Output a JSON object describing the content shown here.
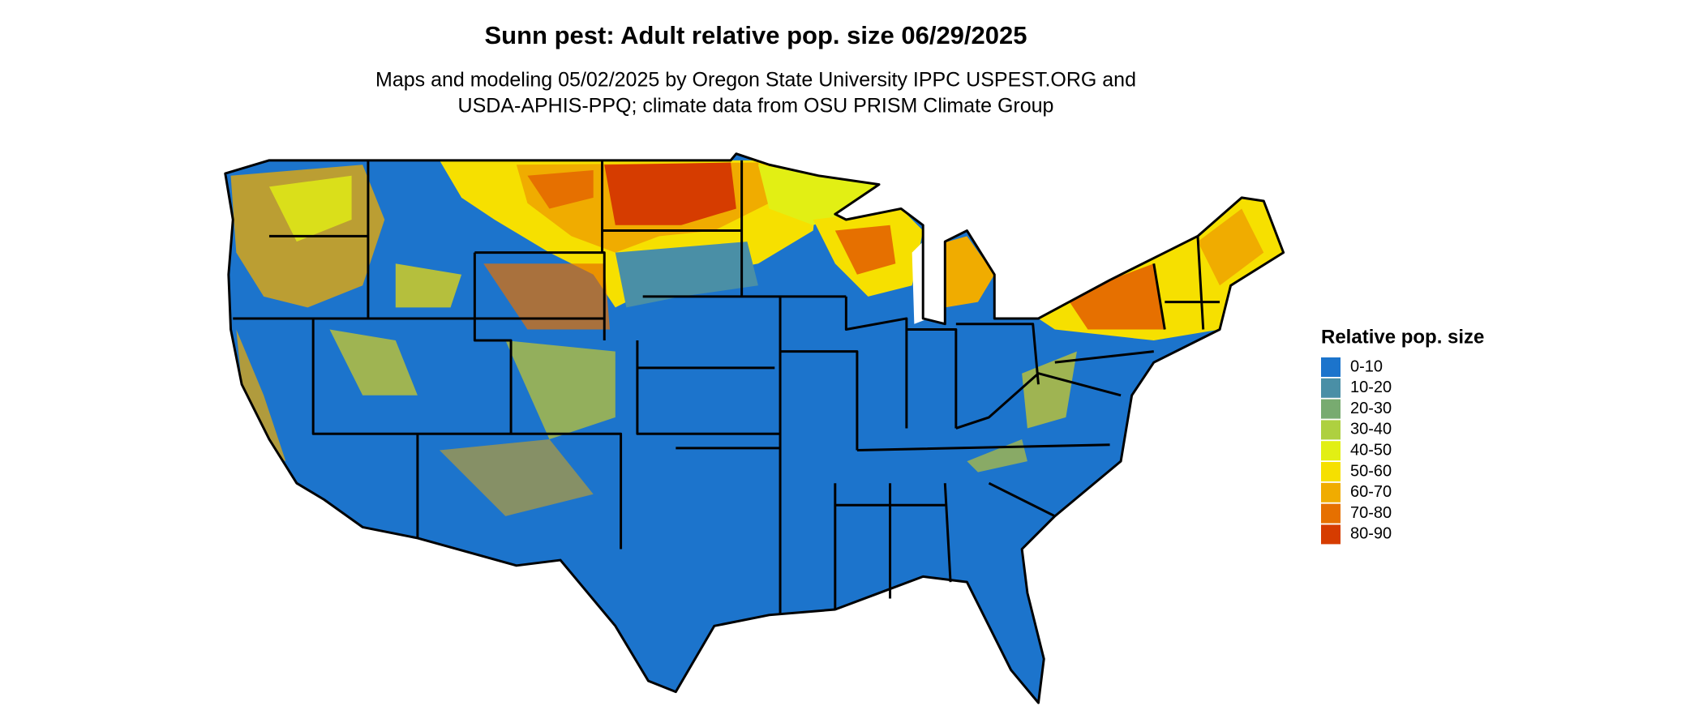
{
  "title": "Sunn pest: Adult relative pop. size 06/29/2025",
  "subtitle": [
    "Maps and modeling 05/02/2025 by Oregon State University IPPC USPEST.ORG and",
    "USDA-APHIS-PPQ; climate data from OSU PRISM Climate Group"
  ],
  "legend": {
    "title": "Relative pop. size",
    "items": [
      {
        "label": "0-10",
        "color": "#1c74cc"
      },
      {
        "label": "10-20",
        "color": "#4a8fa6"
      },
      {
        "label": "20-30",
        "color": "#78ab70"
      },
      {
        "label": "30-40",
        "color": "#aed040"
      },
      {
        "label": "40-50",
        "color": "#e2ef14"
      },
      {
        "label": "50-60",
        "color": "#f6e000"
      },
      {
        "label": "60-70",
        "color": "#f0ac00"
      },
      {
        "label": "70-80",
        "color": "#e67000"
      },
      {
        "label": "80-90",
        "color": "#d63c00"
      }
    ]
  }
}
